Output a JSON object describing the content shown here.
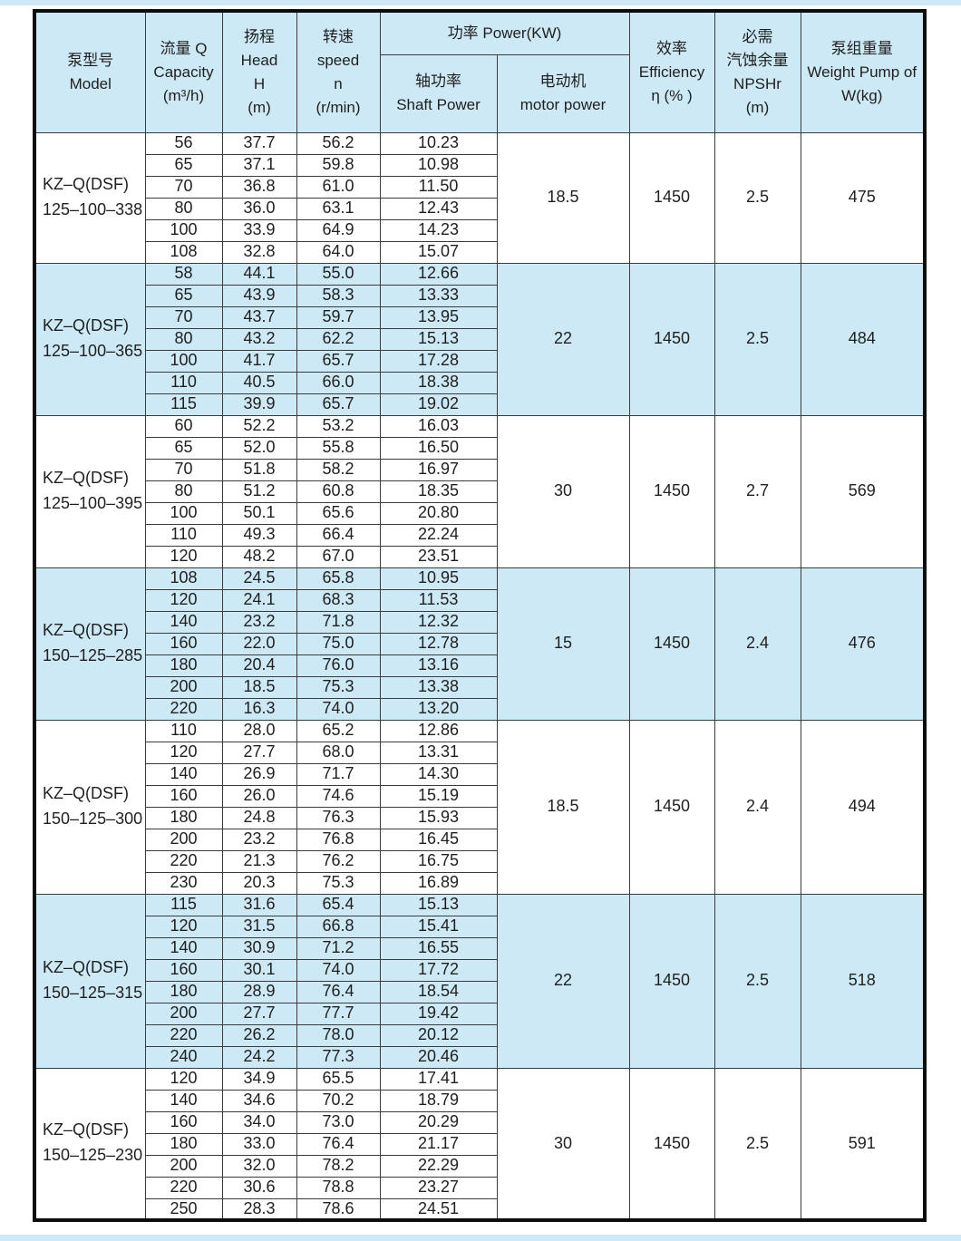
{
  "colors": {
    "accent_blue": "#cde9f6",
    "edge_strip_blue": "#cfe9f7",
    "border_dark": "#0d0d0d",
    "grid_line": "#3c3c3c"
  },
  "table": {
    "header": {
      "model": [
        "泵型号",
        "Model"
      ],
      "capacity": [
        "流量 Q",
        "Capacity",
        "(m³/h)"
      ],
      "head": [
        "扬程",
        "Head",
        "H",
        "(m)"
      ],
      "speed": [
        "转速",
        "speed",
        "n",
        "(r/min)"
      ],
      "power": "功率 Power(KW)",
      "shaft": [
        "轴功率",
        "Shaft Power"
      ],
      "motor": [
        "电动机",
        "motor power"
      ],
      "efficiency": [
        "效率",
        "Efficiency",
        "η (% )"
      ],
      "npshr": [
        "必需",
        "汽蚀余量",
        "NPSHr",
        "(m)"
      ],
      "weight": [
        "泵组重量",
        "Weight Pump of",
        "W(kg)"
      ]
    },
    "row_value_names": [
      "capacity-cell",
      "head-cell",
      "speed-cell",
      "shaft-power-cell"
    ],
    "blocks": [
      {
        "model": [
          "KZ–Q(DSF)",
          "125–100–338"
        ],
        "highlight": false,
        "rows": [
          [
            "56",
            "37.7",
            "56.2",
            "10.23"
          ],
          [
            "65",
            "37.1",
            "59.8",
            "10.98"
          ],
          [
            "70",
            "36.8",
            "61.0",
            "11.50"
          ],
          [
            "80",
            "36.0",
            "63.1",
            "12.43"
          ],
          [
            "100",
            "33.9",
            "64.9",
            "14.23"
          ],
          [
            "108",
            "32.8",
            "64.0",
            "15.07"
          ]
        ],
        "motor_power": "18.5",
        "efficiency": "1450",
        "npshr": "2.5",
        "weight": "475"
      },
      {
        "model": [
          "KZ–Q(DSF)",
          "125–100–365"
        ],
        "highlight": true,
        "rows": [
          [
            "58",
            "44.1",
            "55.0",
            "12.66"
          ],
          [
            "65",
            "43.9",
            "58.3",
            "13.33"
          ],
          [
            "70",
            "43.7",
            "59.7",
            "13.95"
          ],
          [
            "80",
            "43.2",
            "62.2",
            "15.13"
          ],
          [
            "100",
            "41.7",
            "65.7",
            "17.28"
          ],
          [
            "110",
            "40.5",
            "66.0",
            "18.38"
          ],
          [
            "115",
            "39.9",
            "65.7",
            "19.02"
          ]
        ],
        "motor_power": "22",
        "efficiency": "1450",
        "npshr": "2.5",
        "weight": "484"
      },
      {
        "model": [
          "KZ–Q(DSF)",
          "125–100–395"
        ],
        "highlight": false,
        "rows": [
          [
            "60",
            "52.2",
            "53.2",
            "16.03"
          ],
          [
            "65",
            "52.0",
            "55.8",
            "16.50"
          ],
          [
            "70",
            "51.8",
            "58.2",
            "16.97"
          ],
          [
            "80",
            "51.2",
            "60.8",
            "18.35"
          ],
          [
            "100",
            "50.1",
            "65.6",
            "20.80"
          ],
          [
            "110",
            "49.3",
            "66.4",
            "22.24"
          ],
          [
            "120",
            "48.2",
            "67.0",
            "23.51"
          ]
        ],
        "motor_power": "30",
        "efficiency": "1450",
        "npshr": "2.7",
        "weight": "569"
      },
      {
        "model": [
          "KZ–Q(DSF)",
          "150–125–285"
        ],
        "highlight": true,
        "rows": [
          [
            "108",
            "24.5",
            "65.8",
            "10.95"
          ],
          [
            "120",
            "24.1",
            "68.3",
            "11.53"
          ],
          [
            "140",
            "23.2",
            "71.8",
            "12.32"
          ],
          [
            "160",
            "22.0",
            "75.0",
            "12.78"
          ],
          [
            "180",
            "20.4",
            "76.0",
            "13.16"
          ],
          [
            "200",
            "18.5",
            "75.3",
            "13.38"
          ],
          [
            "220",
            "16.3",
            "74.0",
            "13.20"
          ]
        ],
        "motor_power": "15",
        "efficiency": "1450",
        "npshr": "2.4",
        "weight": "476"
      },
      {
        "model": [
          "KZ–Q(DSF)",
          "150–125–300"
        ],
        "highlight": false,
        "rows": [
          [
            "110",
            "28.0",
            "65.2",
            "12.86"
          ],
          [
            "120",
            "27.7",
            "68.0",
            "13.31"
          ],
          [
            "140",
            "26.9",
            "71.7",
            "14.30"
          ],
          [
            "160",
            "26.0",
            "74.6",
            "15.19"
          ],
          [
            "180",
            "24.8",
            "76.3",
            "15.93"
          ],
          [
            "200",
            "23.2",
            "76.8",
            "16.45"
          ],
          [
            "220",
            "21.3",
            "76.2",
            "16.75"
          ],
          [
            "230",
            "20.3",
            "75.3",
            "16.89"
          ]
        ],
        "motor_power": "18.5",
        "efficiency": "1450",
        "npshr": "2.4",
        "weight": "494"
      },
      {
        "model": [
          "KZ–Q(DSF)",
          "150–125–315"
        ],
        "highlight": true,
        "rows": [
          [
            "115",
            "31.6",
            "65.4",
            "15.13"
          ],
          [
            "120",
            "31.5",
            "66.8",
            "15.41"
          ],
          [
            "140",
            "30.9",
            "71.2",
            "16.55"
          ],
          [
            "160",
            "30.1",
            "74.0",
            "17.72"
          ],
          [
            "180",
            "28.9",
            "76.4",
            "18.54"
          ],
          [
            "200",
            "27.7",
            "77.7",
            "19.42"
          ],
          [
            "220",
            "26.2",
            "78.0",
            "20.12"
          ],
          [
            "240",
            "24.2",
            "77.3",
            "20.46"
          ]
        ],
        "motor_power": "22",
        "efficiency": "1450",
        "npshr": "2.5",
        "weight": "518"
      },
      {
        "model": [
          "KZ–Q(DSF)",
          "150–125–230"
        ],
        "highlight": false,
        "rows": [
          [
            "120",
            "34.9",
            "65.5",
            "17.41"
          ],
          [
            "140",
            "34.6",
            "70.2",
            "18.79"
          ],
          [
            "160",
            "34.0",
            "73.0",
            "20.29"
          ],
          [
            "180",
            "33.0",
            "76.4",
            "21.17"
          ],
          [
            "200",
            "32.0",
            "78.2",
            "22.29"
          ],
          [
            "220",
            "30.6",
            "78.8",
            "23.27"
          ],
          [
            "250",
            "28.3",
            "78.6",
            "24.51"
          ]
        ],
        "motor_power": "30",
        "efficiency": "1450",
        "npshr": "2.5",
        "weight": "591"
      }
    ]
  }
}
